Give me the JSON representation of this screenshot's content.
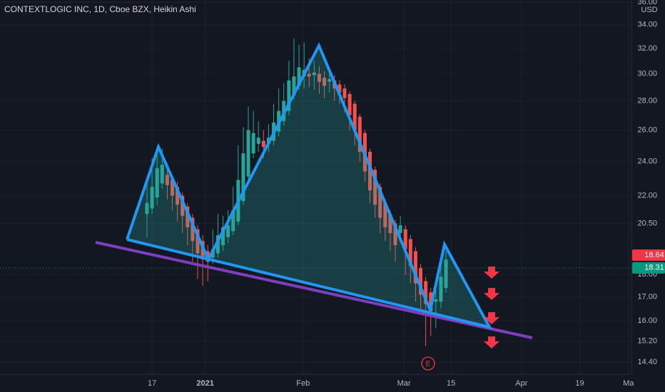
{
  "chart_data": {
    "type": "candlestick",
    "title": "CONTEXTLOGIC INC, 1D, Cboe BZX, Heikin Ashi",
    "currency": "USD",
    "log_scale": true,
    "grid": true,
    "up_color": "#26a69a",
    "down_color": "#ef5350",
    "xlim": [
      -29.0,
      95.6
    ],
    "ylim": [
      13.97,
      36.2
    ],
    "xticks": [
      {
        "value": 1,
        "label": "17"
      },
      {
        "value": 11.5,
        "label": "2021"
      },
      {
        "value": 30.8,
        "label": "Feb"
      },
      {
        "value": 50.7,
        "label": "Mar"
      },
      {
        "value": 60,
        "label": "15"
      },
      {
        "value": 73.9,
        "label": "Apr"
      },
      {
        "value": 85.4,
        "label": "19"
      },
      {
        "value": 95,
        "label": "Ma"
      }
    ],
    "yticks": [
      {
        "value": 14.4,
        "label": "14.40"
      },
      {
        "value": 15.2,
        "label": "15.20"
      },
      {
        "value": 16,
        "label": "16.00"
      },
      {
        "value": 17,
        "label": "17.00"
      },
      {
        "value": 18,
        "label": "18.00"
      },
      {
        "value": 20.5,
        "label": "20.50"
      },
      {
        "value": 22,
        "label": "22.00"
      },
      {
        "value": 24,
        "label": "24.00"
      },
      {
        "value": 26,
        "label": "26.00"
      },
      {
        "value": 28,
        "label": "28.00"
      },
      {
        "value": 30,
        "label": "30.00"
      },
      {
        "value": 32,
        "label": "32.00"
      },
      {
        "value": 34,
        "label": "34.00"
      },
      {
        "value": 36,
        "label": "36.00"
      }
    ],
    "price_labels": [
      {
        "value": 18.64,
        "label": "18.64",
        "color": "#f23645"
      },
      {
        "value": 18.31,
        "label": "18.31",
        "color": "#089981"
      }
    ],
    "annotations": [
      "E"
    ],
    "candles": {
      "open": [
        21.0,
        21.3,
        21.9,
        22.7,
        23.2,
        22.9,
        22.5,
        22.0,
        21.4,
        20.8,
        20.2,
        19.6,
        19.1,
        18.8,
        19.0,
        19.4,
        19.8,
        20.1,
        20.6,
        21.7,
        23.1,
        24.5,
        25.1,
        25.3,
        25.1,
        25.3,
        25.9,
        26.6,
        27.3,
        28.4,
        29.1,
        29.8,
        30.0,
        29.9,
        30.0,
        29.7,
        29.4,
        29.5,
        29.2,
        28.9,
        28.5,
        27.8,
        26.9,
        25.8,
        24.6,
        23.5,
        22.5,
        21.6,
        21.0,
        20.5,
        20.0,
        20.2,
        19.7,
        19.1,
        18.3,
        17.7,
        17.2,
        16.8,
        16.8,
        17.4
      ],
      "high": [
        22.8,
        24.2,
        24.4,
        24.8,
        23.9,
        23.2,
        22.8,
        22.2,
        21.6,
        21.0,
        20.4,
        19.9,
        19.4,
        20.2,
        21.0,
        20.9,
        21.2,
        22.5,
        25.0,
        26.2,
        27.6,
        27.3,
        26.6,
        26.0,
        26.4,
        27.8,
        28.9,
        29.3,
        31.0,
        32.8,
        32.3,
        32.5,
        31.2,
        31.0,
        30.6,
        30.2,
        30.0,
        29.9,
        29.5,
        29.2,
        28.7,
        28.0,
        27.1,
        26.0,
        24.8,
        23.7,
        22.7,
        21.8,
        21.2,
        20.7,
        20.9,
        20.4,
        19.9,
        19.3,
        18.5,
        17.9,
        17.4,
        17.6,
        18.6,
        19.1
      ],
      "low": [
        19.8,
        21.0,
        21.5,
        22.4,
        21.8,
        21.2,
        20.6,
        20.0,
        19.4,
        18.6,
        17.8,
        17.5,
        17.7,
        18.5,
        18.8,
        19.1,
        19.5,
        19.9,
        20.4,
        21.5,
        22.9,
        24.2,
        24.6,
        24.2,
        24.6,
        25.0,
        25.6,
        26.3,
        27.0,
        28.1,
        28.8,
        28.9,
        29.0,
        28.8,
        28.5,
        28.2,
        28.6,
        28.0,
        27.8,
        27.2,
        26.0,
        25.0,
        24.0,
        22.8,
        21.6,
        20.8,
        20.0,
        19.6,
        19.1,
        18.6,
        19.6,
        18.0,
        17.6,
        16.8,
        16.4,
        15.0,
        15.4,
        15.7,
        16.5,
        17.2
      ],
      "close": [
        21.6,
        22.5,
        23.6,
        23.8,
        22.6,
        22.0,
        21.5,
        20.9,
        20.3,
        19.6,
        19.0,
        18.7,
        18.6,
        19.2,
        19.9,
        20.3,
        20.4,
        21.2,
        22.9,
        24.5,
        26.0,
        25.8,
        25.5,
        24.9,
        25.5,
        26.5,
        27.3,
        28.0,
        29.5,
        29.8,
        30.5,
        30.3,
        29.8,
        30.1,
        29.4,
        29.1,
        29.6,
        28.9,
        28.6,
        28.2,
        27.0,
        26.0,
        24.6,
        23.4,
        22.3,
        21.5,
        20.8,
        20.3,
        20.0,
        19.4,
        20.4,
        19.2,
        18.4,
        17.6,
        17.1,
        16.7,
        16.4,
        16.9,
        17.9,
        18.7
      ]
    }
  }
}
